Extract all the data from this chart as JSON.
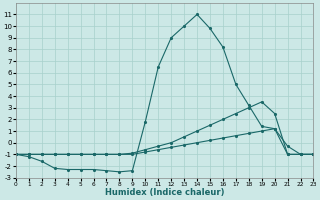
{
  "xlabel": "Humidex (Indice chaleur)",
  "xlim": [
    0,
    23
  ],
  "ylim": [
    -3,
    12
  ],
  "yticks": [
    -3,
    -2,
    -1,
    0,
    1,
    2,
    3,
    4,
    5,
    6,
    7,
    8,
    9,
    10,
    11
  ],
  "xticks": [
    0,
    1,
    2,
    3,
    4,
    5,
    6,
    7,
    8,
    9,
    10,
    11,
    12,
    13,
    14,
    15,
    16,
    17,
    18,
    19,
    20,
    21,
    22,
    23
  ],
  "background_color": "#cce8e6",
  "grid_color": "#a8d0cc",
  "line_color": "#1a6868",
  "series": [
    {
      "x": [
        0,
        1,
        2,
        3,
        4,
        5,
        6,
        7,
        8,
        9,
        10,
        11,
        12,
        13,
        14,
        15,
        16,
        17,
        18,
        19,
        20,
        21,
        22,
        23
      ],
      "y": [
        -1.0,
        -1.2,
        -1.6,
        -2.2,
        -2.3,
        -2.3,
        -2.3,
        -2.4,
        -2.5,
        -2.4,
        1.8,
        6.5,
        9.0,
        10.0,
        11.0,
        9.8,
        8.2,
        5.0,
        3.2,
        1.4,
        1.2,
        -0.3,
        -1.0,
        -1.0
      ]
    },
    {
      "x": [
        0,
        1,
        2,
        3,
        4,
        5,
        6,
        7,
        8,
        9,
        10,
        11,
        12,
        13,
        14,
        15,
        16,
        17,
        18,
        19,
        20,
        21,
        22,
        23
      ],
      "y": [
        -1.0,
        -1.0,
        -1.0,
        -1.0,
        -1.0,
        -1.0,
        -1.0,
        -1.0,
        -1.0,
        -0.9,
        -0.6,
        -0.3,
        0.0,
        0.5,
        1.0,
        1.5,
        2.0,
        2.5,
        3.0,
        3.5,
        2.5,
        -1.0,
        -1.0,
        -1.0
      ]
    },
    {
      "x": [
        0,
        1,
        2,
        3,
        4,
        5,
        6,
        7,
        8,
        9,
        10,
        11,
        12,
        13,
        14,
        15,
        16,
        17,
        18,
        19,
        20,
        21,
        22,
        23
      ],
      "y": [
        -1.0,
        -1.0,
        -1.0,
        -1.0,
        -1.0,
        -1.0,
        -1.0,
        -1.0,
        -1.0,
        -1.0,
        -0.8,
        -0.6,
        -0.4,
        -0.2,
        0.0,
        0.2,
        0.4,
        0.6,
        0.8,
        1.0,
        1.2,
        -1.0,
        -1.0,
        -1.0
      ]
    }
  ]
}
